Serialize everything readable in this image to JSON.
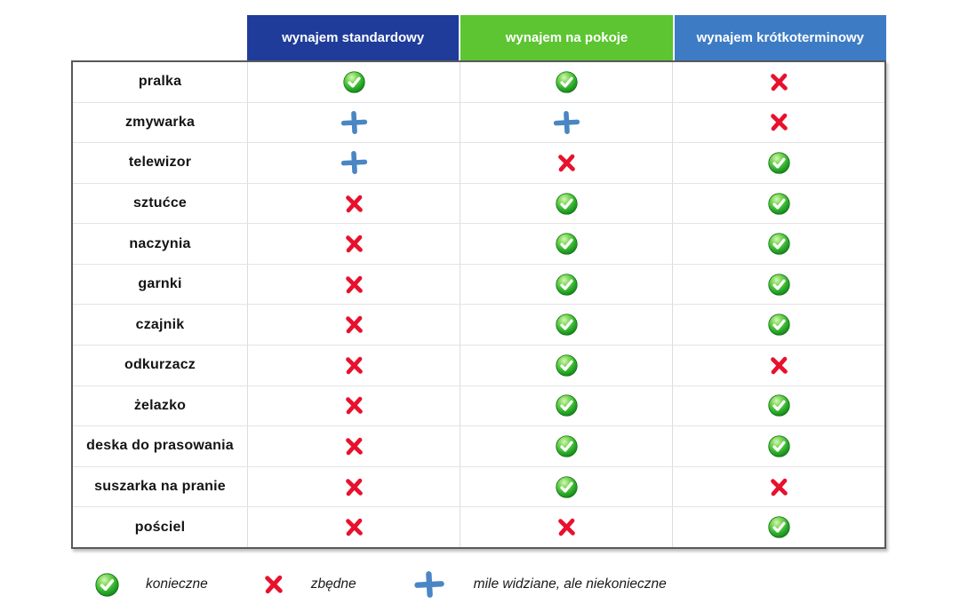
{
  "table": {
    "columns": [
      {
        "label": "wynajem standardowy",
        "color": "#1f3c9b"
      },
      {
        "label": "wynajem na pokoje",
        "color": "#5cc531"
      },
      {
        "label": "wynajem krótkoterminowy",
        "color": "#3d7cc4"
      }
    ],
    "rows": [
      {
        "label": "pralka",
        "cells": [
          "check",
          "check",
          "cross"
        ]
      },
      {
        "label": "zmywarka",
        "cells": [
          "plus",
          "plus",
          "cross"
        ]
      },
      {
        "label": "telewizor",
        "cells": [
          "plus",
          "cross",
          "check"
        ]
      },
      {
        "label": "sztućce",
        "cells": [
          "cross",
          "check",
          "check"
        ]
      },
      {
        "label": "naczynia",
        "cells": [
          "cross",
          "check",
          "check"
        ]
      },
      {
        "label": "garnki",
        "cells": [
          "cross",
          "check",
          "check"
        ]
      },
      {
        "label": "czajnik",
        "cells": [
          "cross",
          "check",
          "check"
        ]
      },
      {
        "label": "odkurzacz",
        "cells": [
          "cross",
          "check",
          "cross"
        ]
      },
      {
        "label": "żelazko",
        "cells": [
          "cross",
          "check",
          "check"
        ]
      },
      {
        "label": "deska do prasowania",
        "cells": [
          "cross",
          "check",
          "check"
        ]
      },
      {
        "label": "suszarka na pranie",
        "cells": [
          "cross",
          "check",
          "cross"
        ]
      },
      {
        "label": "pościel",
        "cells": [
          "cross",
          "cross",
          "check"
        ]
      }
    ]
  },
  "legend": {
    "items": [
      {
        "icon": "check",
        "label": "konieczne"
      },
      {
        "icon": "cross",
        "label": "zbędne"
      },
      {
        "icon": "plus",
        "label": "mile widziane, ale niekonieczne"
      }
    ]
  },
  "colors": {
    "header_standard": "#1f3c9b",
    "header_rooms": "#5cc531",
    "header_short_term": "#3d7cc4",
    "check_gradient_light": "#d6f5bd",
    "check_gradient_mid": "#55c43f",
    "check_gradient_dark": "#117a14",
    "cross_red": "#e8112d",
    "plus_blue": "#4a86c4",
    "table_border": "#595959",
    "grid_line": "#dcdcdc"
  },
  "chart_data": {
    "type": "table",
    "title": "",
    "columns": [
      "wynajem standardowy",
      "wynajem na pokoje",
      "wynajem krótkoterminowy"
    ],
    "rows": [
      "pralka",
      "zmywarka",
      "telewizor",
      "sztućce",
      "naczynia",
      "garnki",
      "czajnik",
      "odkurzacz",
      "żelazko",
      "deska do prasowania",
      "suszarka na pranie",
      "pościel"
    ],
    "values": [
      [
        "konieczne",
        "konieczne",
        "zbędne"
      ],
      [
        "mile widziane, ale niekonieczne",
        "mile widziane, ale niekonieczne",
        "zbędne"
      ],
      [
        "mile widziane, ale niekonieczne",
        "zbędne",
        "konieczne"
      ],
      [
        "zbędne",
        "konieczne",
        "konieczne"
      ],
      [
        "zbędne",
        "konieczne",
        "konieczne"
      ],
      [
        "zbędne",
        "konieczne",
        "konieczne"
      ],
      [
        "zbędne",
        "konieczne",
        "konieczne"
      ],
      [
        "zbędne",
        "konieczne",
        "zbędne"
      ],
      [
        "zbędne",
        "konieczne",
        "konieczne"
      ],
      [
        "zbędne",
        "konieczne",
        "konieczne"
      ],
      [
        "zbędne",
        "konieczne",
        "zbędne"
      ],
      [
        "zbędne",
        "zbędne",
        "konieczne"
      ]
    ],
    "legend": {
      "green-check": "konieczne",
      "red-cross": "zbędne",
      "blue-plus": "mile widziane, ale niekonieczne"
    },
    "layout": {
      "legend_position": "bottom",
      "grid": true
    }
  }
}
